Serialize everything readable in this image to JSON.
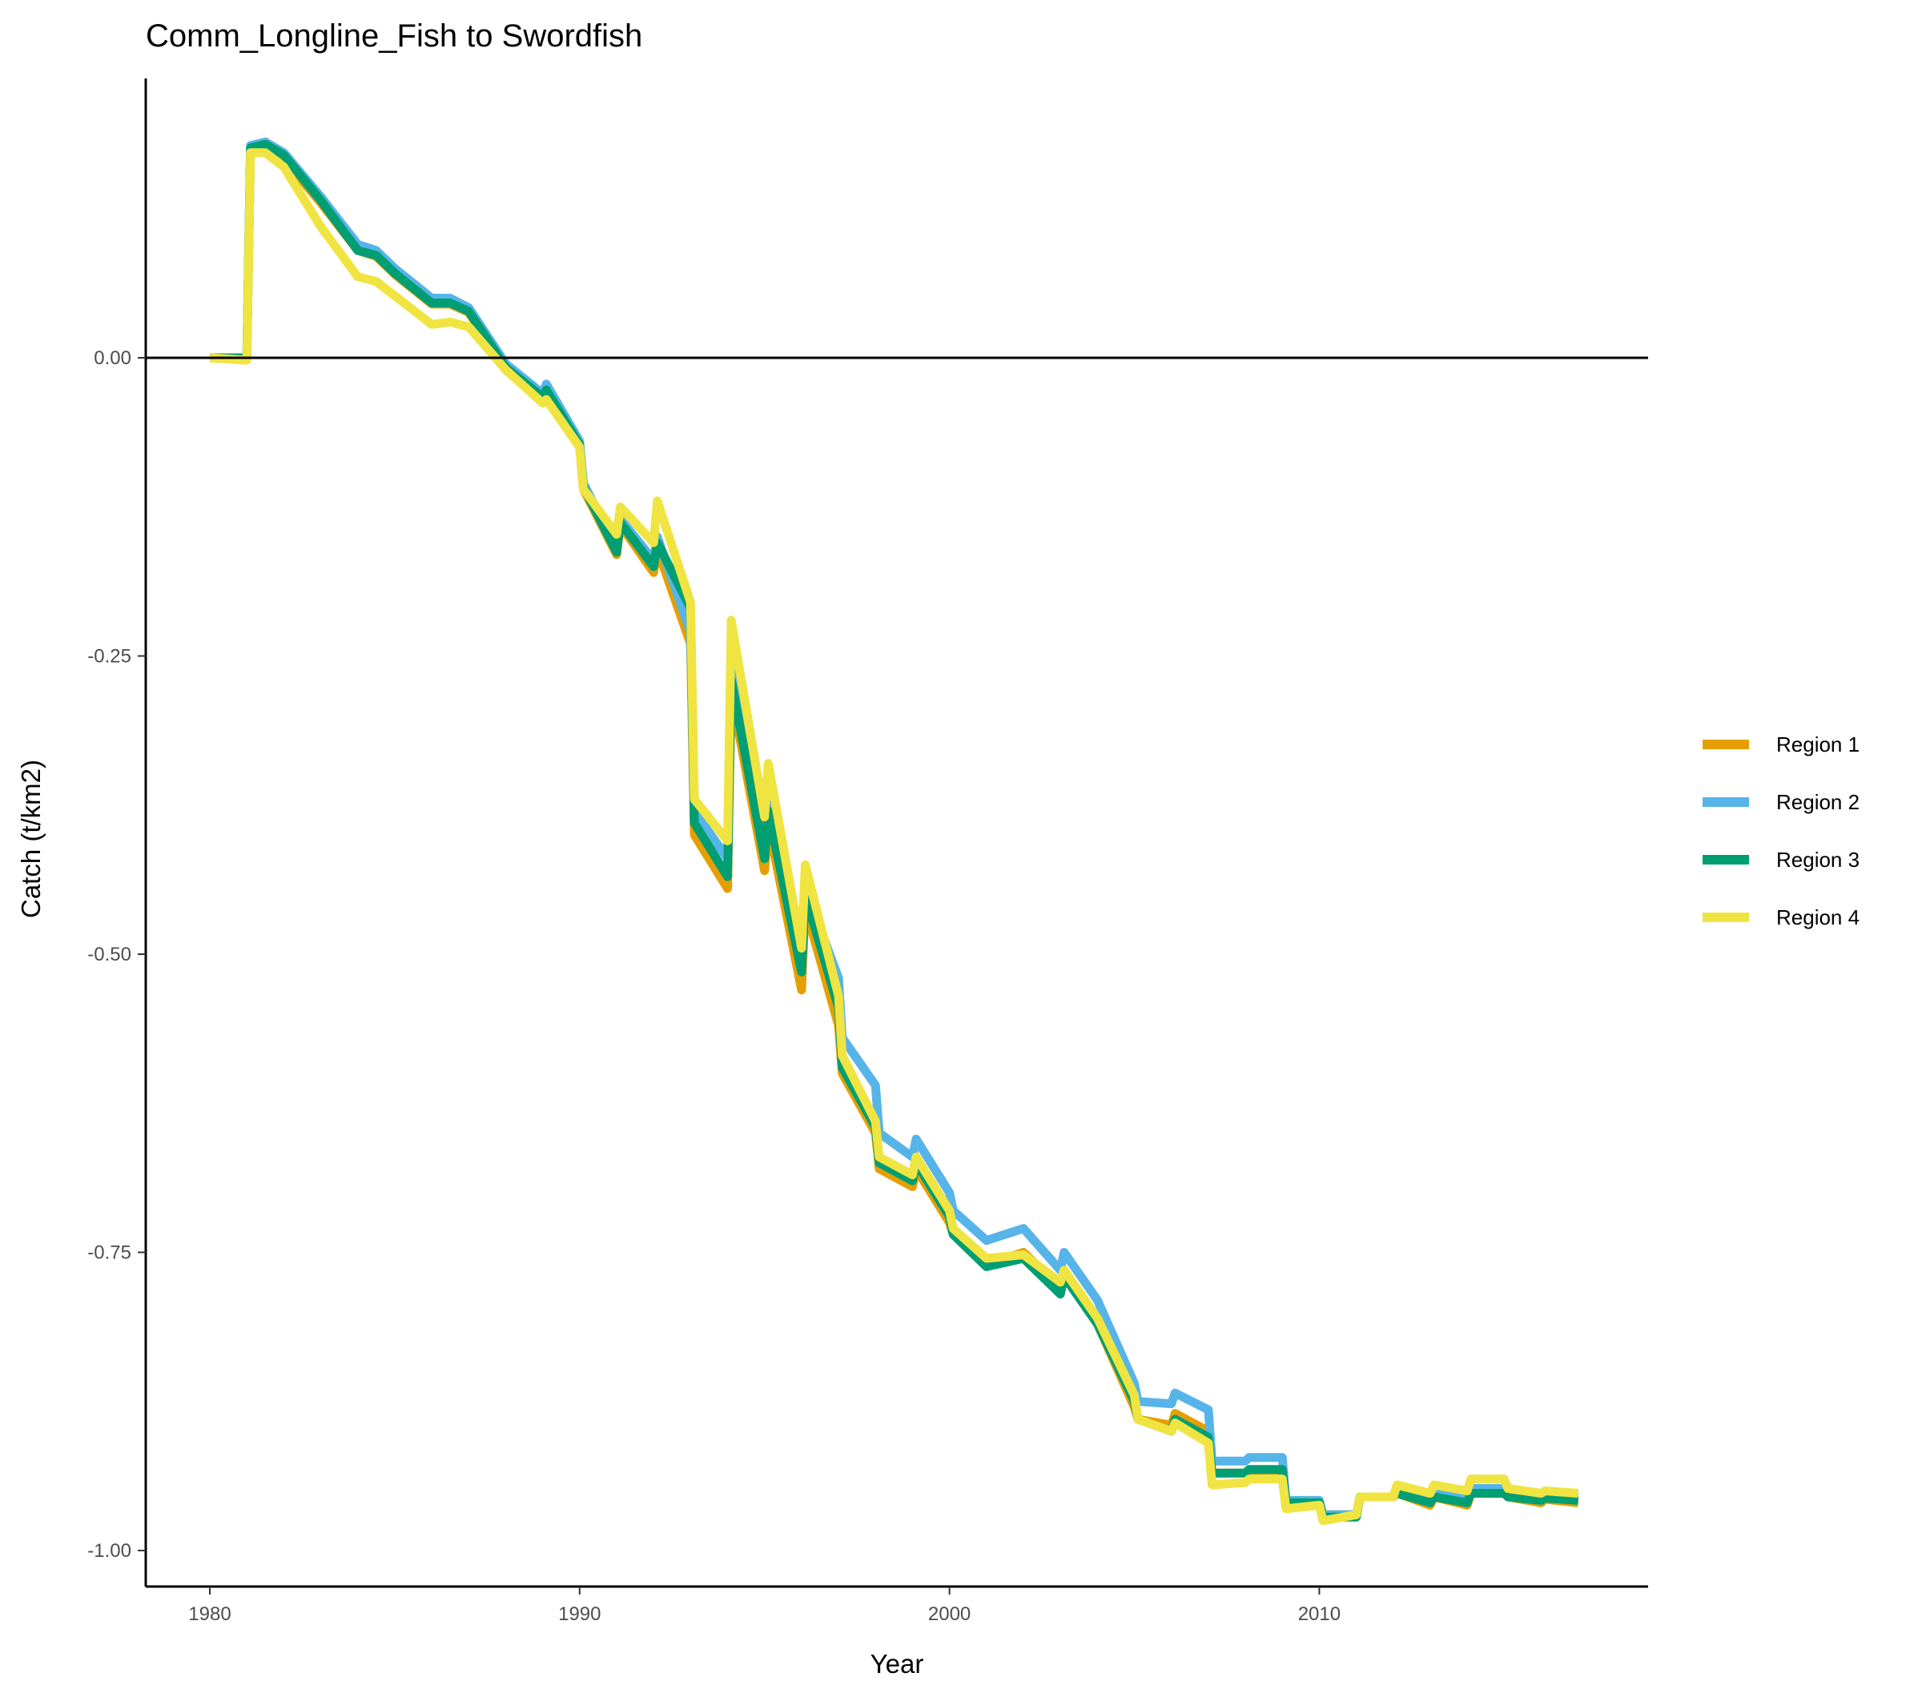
{
  "chart_data": {
    "type": "line",
    "title": "Comm_Longline_Fish to Swordfish",
    "xlabel": "Year",
    "ylabel": "Catch (t/km2)",
    "xlim": [
      1978.25,
      2018.75
    ],
    "ylim": [
      -1.03,
      0.235
    ],
    "x_ticks": [
      1980,
      1990,
      2000,
      2010
    ],
    "x_tick_labels": [
      "1980",
      "1990",
      "2000",
      "2010"
    ],
    "y_ticks": [
      0.0,
      -0.25,
      -0.5,
      -0.75,
      -1.0
    ],
    "y_tick_labels": [
      "0.00",
      "-0.25",
      "-0.50",
      "-0.75",
      "-1.00"
    ],
    "reference_line_y": 0,
    "grid": false,
    "legend_position": "right",
    "series": [
      {
        "name": "Region 1",
        "color": "#E69F00",
        "points": [
          [
            1980.0,
            0.0
          ],
          [
            1981.0,
            0.0
          ],
          [
            1981.1,
            0.175
          ],
          [
            1981.5,
            0.178
          ],
          [
            1982.0,
            0.167
          ],
          [
            1983.0,
            0.13
          ],
          [
            1984.0,
            0.09
          ],
          [
            1984.5,
            0.085
          ],
          [
            1985.0,
            0.07
          ],
          [
            1986.0,
            0.045
          ],
          [
            1986.5,
            0.045
          ],
          [
            1987.0,
            0.038
          ],
          [
            1988.0,
            -0.01
          ],
          [
            1989.0,
            -0.035
          ],
          [
            1989.1,
            -0.03
          ],
          [
            1990.0,
            -0.075
          ],
          [
            1990.1,
            -0.11
          ],
          [
            1991.0,
            -0.165
          ],
          [
            1991.1,
            -0.14
          ],
          [
            1992.0,
            -0.18
          ],
          [
            1992.1,
            -0.16
          ],
          [
            1993.0,
            -0.24
          ],
          [
            1993.1,
            -0.4
          ],
          [
            1994.0,
            -0.445
          ],
          [
            1994.1,
            -0.28
          ],
          [
            1995.0,
            -0.43
          ],
          [
            1995.1,
            -0.39
          ],
          [
            1996.0,
            -0.53
          ],
          [
            1996.1,
            -0.46
          ],
          [
            1997.0,
            -0.56
          ],
          [
            1997.1,
            -0.6
          ],
          [
            1998.0,
            -0.65
          ],
          [
            1998.1,
            -0.68
          ],
          [
            1999.0,
            -0.695
          ],
          [
            1999.1,
            -0.68
          ],
          [
            2000.0,
            -0.725
          ],
          [
            2000.1,
            -0.735
          ],
          [
            2001.0,
            -0.76
          ],
          [
            2002.0,
            -0.75
          ],
          [
            2003.0,
            -0.78
          ],
          [
            2003.1,
            -0.77
          ],
          [
            2004.0,
            -0.81
          ],
          [
            2005.0,
            -0.88
          ],
          [
            2005.1,
            -0.89
          ],
          [
            2006.0,
            -0.895
          ],
          [
            2006.1,
            -0.885
          ],
          [
            2007.0,
            -0.9
          ],
          [
            2007.1,
            -0.935
          ],
          [
            2008.0,
            -0.935
          ],
          [
            2009.0,
            -0.935
          ],
          [
            2009.1,
            -0.96
          ],
          [
            2010.0,
            -0.96
          ],
          [
            2010.1,
            -0.97
          ],
          [
            2011.0,
            -0.97
          ],
          [
            2011.1,
            -0.955
          ],
          [
            2012.0,
            -0.955
          ],
          [
            2012.1,
            -0.952
          ],
          [
            2013.0,
            -0.962
          ],
          [
            2013.1,
            -0.955
          ],
          [
            2014.0,
            -0.962
          ],
          [
            2014.1,
            -0.952
          ],
          [
            2015.0,
            -0.95
          ],
          [
            2015.1,
            -0.955
          ],
          [
            2016.0,
            -0.96
          ],
          [
            2016.1,
            -0.957
          ],
          [
            2017.0,
            -0.96
          ]
        ]
      },
      {
        "name": "Region 2",
        "color": "#56B4E9",
        "points": [
          [
            1980.0,
            0.0
          ],
          [
            1981.0,
            0.0
          ],
          [
            1981.1,
            0.178
          ],
          [
            1981.5,
            0.181
          ],
          [
            1982.0,
            0.172
          ],
          [
            1983.0,
            0.135
          ],
          [
            1984.0,
            0.095
          ],
          [
            1984.5,
            0.09
          ],
          [
            1985.0,
            0.075
          ],
          [
            1986.0,
            0.05
          ],
          [
            1986.5,
            0.05
          ],
          [
            1987.0,
            0.042
          ],
          [
            1988.0,
            -0.005
          ],
          [
            1989.0,
            -0.03
          ],
          [
            1989.1,
            -0.022
          ],
          [
            1990.0,
            -0.07
          ],
          [
            1990.1,
            -0.105
          ],
          [
            1991.0,
            -0.16
          ],
          [
            1991.1,
            -0.135
          ],
          [
            1992.0,
            -0.17
          ],
          [
            1992.1,
            -0.15
          ],
          [
            1993.0,
            -0.23
          ],
          [
            1993.1,
            -0.38
          ],
          [
            1994.0,
            -0.42
          ],
          [
            1994.1,
            -0.26
          ],
          [
            1995.0,
            -0.41
          ],
          [
            1995.1,
            -0.37
          ],
          [
            1996.0,
            -0.5
          ],
          [
            1996.1,
            -0.445
          ],
          [
            1997.0,
            -0.52
          ],
          [
            1997.1,
            -0.57
          ],
          [
            1998.0,
            -0.61
          ],
          [
            1998.1,
            -0.65
          ],
          [
            1999.0,
            -0.67
          ],
          [
            1999.1,
            -0.655
          ],
          [
            2000.0,
            -0.7
          ],
          [
            2000.1,
            -0.715
          ],
          [
            2001.0,
            -0.74
          ],
          [
            2002.0,
            -0.73
          ],
          [
            2003.0,
            -0.765
          ],
          [
            2003.1,
            -0.75
          ],
          [
            2004.0,
            -0.79
          ],
          [
            2005.0,
            -0.86
          ],
          [
            2005.1,
            -0.875
          ],
          [
            2006.0,
            -0.877
          ],
          [
            2006.1,
            -0.868
          ],
          [
            2007.0,
            -0.882
          ],
          [
            2007.1,
            -0.925
          ],
          [
            2008.0,
            -0.925
          ],
          [
            2008.1,
            -0.922
          ],
          [
            2009.0,
            -0.922
          ],
          [
            2009.1,
            -0.958
          ],
          [
            2010.0,
            -0.958
          ],
          [
            2010.1,
            -0.97
          ],
          [
            2011.0,
            -0.97
          ],
          [
            2011.1,
            -0.955
          ],
          [
            2012.0,
            -0.955
          ],
          [
            2012.1,
            -0.95
          ],
          [
            2013.0,
            -0.958
          ],
          [
            2013.1,
            -0.952
          ],
          [
            2014.0,
            -0.955
          ],
          [
            2014.1,
            -0.948
          ],
          [
            2015.0,
            -0.948
          ],
          [
            2015.1,
            -0.953
          ],
          [
            2016.0,
            -0.955
          ],
          [
            2016.1,
            -0.953
          ],
          [
            2017.0,
            -0.955
          ]
        ]
      },
      {
        "name": "Region 3",
        "color": "#009E73",
        "points": [
          [
            1980.0,
            0.0
          ],
          [
            1981.0,
            0.0
          ],
          [
            1981.1,
            0.176
          ],
          [
            1981.5,
            0.179
          ],
          [
            1982.0,
            0.17
          ],
          [
            1983.0,
            0.132
          ],
          [
            1984.0,
            0.09
          ],
          [
            1984.5,
            0.086
          ],
          [
            1985.0,
            0.071
          ],
          [
            1986.0,
            0.046
          ],
          [
            1986.5,
            0.046
          ],
          [
            1987.0,
            0.039
          ],
          [
            1988.0,
            -0.008
          ],
          [
            1989.0,
            -0.033
          ],
          [
            1989.1,
            -0.027
          ],
          [
            1990.0,
            -0.073
          ],
          [
            1990.1,
            -0.108
          ],
          [
            1991.0,
            -0.163
          ],
          [
            1991.1,
            -0.138
          ],
          [
            1992.0,
            -0.175
          ],
          [
            1992.1,
            -0.155
          ],
          [
            1993.0,
            -0.21
          ],
          [
            1993.1,
            -0.39
          ],
          [
            1994.0,
            -0.435
          ],
          [
            1994.1,
            -0.27
          ],
          [
            1995.0,
            -0.42
          ],
          [
            1995.1,
            -0.38
          ],
          [
            1996.0,
            -0.515
          ],
          [
            1996.1,
            -0.45
          ],
          [
            1997.0,
            -0.545
          ],
          [
            1997.1,
            -0.595
          ],
          [
            1998.0,
            -0.645
          ],
          [
            1998.1,
            -0.675
          ],
          [
            1999.0,
            -0.69
          ],
          [
            1999.1,
            -0.675
          ],
          [
            2000.0,
            -0.72
          ],
          [
            2000.1,
            -0.735
          ],
          [
            2001.0,
            -0.762
          ],
          [
            2002.0,
            -0.755
          ],
          [
            2003.0,
            -0.785
          ],
          [
            2003.1,
            -0.77
          ],
          [
            2004.0,
            -0.81
          ],
          [
            2005.0,
            -0.875
          ],
          [
            2005.1,
            -0.89
          ],
          [
            2006.0,
            -0.9
          ],
          [
            2006.1,
            -0.89
          ],
          [
            2007.0,
            -0.905
          ],
          [
            2007.1,
            -0.935
          ],
          [
            2008.0,
            -0.935
          ],
          [
            2008.1,
            -0.932
          ],
          [
            2009.0,
            -0.932
          ],
          [
            2009.1,
            -0.96
          ],
          [
            2010.0,
            -0.96
          ],
          [
            2010.1,
            -0.972
          ],
          [
            2011.0,
            -0.972
          ],
          [
            2011.1,
            -0.955
          ],
          [
            2012.0,
            -0.955
          ],
          [
            2012.1,
            -0.952
          ],
          [
            2013.0,
            -0.96
          ],
          [
            2013.1,
            -0.955
          ],
          [
            2014.0,
            -0.96
          ],
          [
            2014.1,
            -0.952
          ],
          [
            2015.0,
            -0.952
          ],
          [
            2015.1,
            -0.955
          ],
          [
            2016.0,
            -0.958
          ],
          [
            2016.1,
            -0.956
          ],
          [
            2017.0,
            -0.958
          ]
        ]
      },
      {
        "name": "Region 4",
        "color": "#F0E442",
        "points": [
          [
            1980.0,
            0.0
          ],
          [
            1981.0,
            -0.002
          ],
          [
            1981.1,
            0.172
          ],
          [
            1981.5,
            0.172
          ],
          [
            1982.0,
            0.16
          ],
          [
            1983.0,
            0.11
          ],
          [
            1984.0,
            0.068
          ],
          [
            1984.5,
            0.064
          ],
          [
            1985.0,
            0.052
          ],
          [
            1986.0,
            0.028
          ],
          [
            1986.5,
            0.03
          ],
          [
            1987.0,
            0.026
          ],
          [
            1988.0,
            -0.01
          ],
          [
            1989.0,
            -0.038
          ],
          [
            1989.1,
            -0.035
          ],
          [
            1990.0,
            -0.075
          ],
          [
            1990.1,
            -0.11
          ],
          [
            1991.0,
            -0.148
          ],
          [
            1991.1,
            -0.125
          ],
          [
            1992.0,
            -0.155
          ],
          [
            1992.1,
            -0.12
          ],
          [
            1993.0,
            -0.205
          ],
          [
            1993.1,
            -0.37
          ],
          [
            1994.0,
            -0.405
          ],
          [
            1994.1,
            -0.22
          ],
          [
            1995.0,
            -0.385
          ],
          [
            1995.1,
            -0.34
          ],
          [
            1996.0,
            -0.495
          ],
          [
            1996.1,
            -0.425
          ],
          [
            1997.0,
            -0.535
          ],
          [
            1997.1,
            -0.585
          ],
          [
            1998.0,
            -0.64
          ],
          [
            1998.1,
            -0.67
          ],
          [
            1999.0,
            -0.685
          ],
          [
            1999.1,
            -0.67
          ],
          [
            2000.0,
            -0.715
          ],
          [
            2000.1,
            -0.73
          ],
          [
            2001.0,
            -0.755
          ],
          [
            2002.0,
            -0.752
          ],
          [
            2003.0,
            -0.775
          ],
          [
            2003.1,
            -0.765
          ],
          [
            2004.0,
            -0.805
          ],
          [
            2005.0,
            -0.87
          ],
          [
            2005.1,
            -0.89
          ],
          [
            2006.0,
            -0.9
          ],
          [
            2006.1,
            -0.893
          ],
          [
            2007.0,
            -0.91
          ],
          [
            2007.1,
            -0.945
          ],
          [
            2008.0,
            -0.943
          ],
          [
            2008.1,
            -0.94
          ],
          [
            2009.0,
            -0.94
          ],
          [
            2009.1,
            -0.965
          ],
          [
            2010.0,
            -0.962
          ],
          [
            2010.1,
            -0.975
          ],
          [
            2011.0,
            -0.97
          ],
          [
            2011.1,
            -0.955
          ],
          [
            2012.0,
            -0.955
          ],
          [
            2012.1,
            -0.945
          ],
          [
            2013.0,
            -0.952
          ],
          [
            2013.1,
            -0.945
          ],
          [
            2014.0,
            -0.95
          ],
          [
            2014.1,
            -0.94
          ],
          [
            2015.0,
            -0.94
          ],
          [
            2015.1,
            -0.948
          ],
          [
            2016.0,
            -0.952
          ],
          [
            2016.1,
            -0.95
          ],
          [
            2017.0,
            -0.952
          ]
        ]
      }
    ]
  }
}
